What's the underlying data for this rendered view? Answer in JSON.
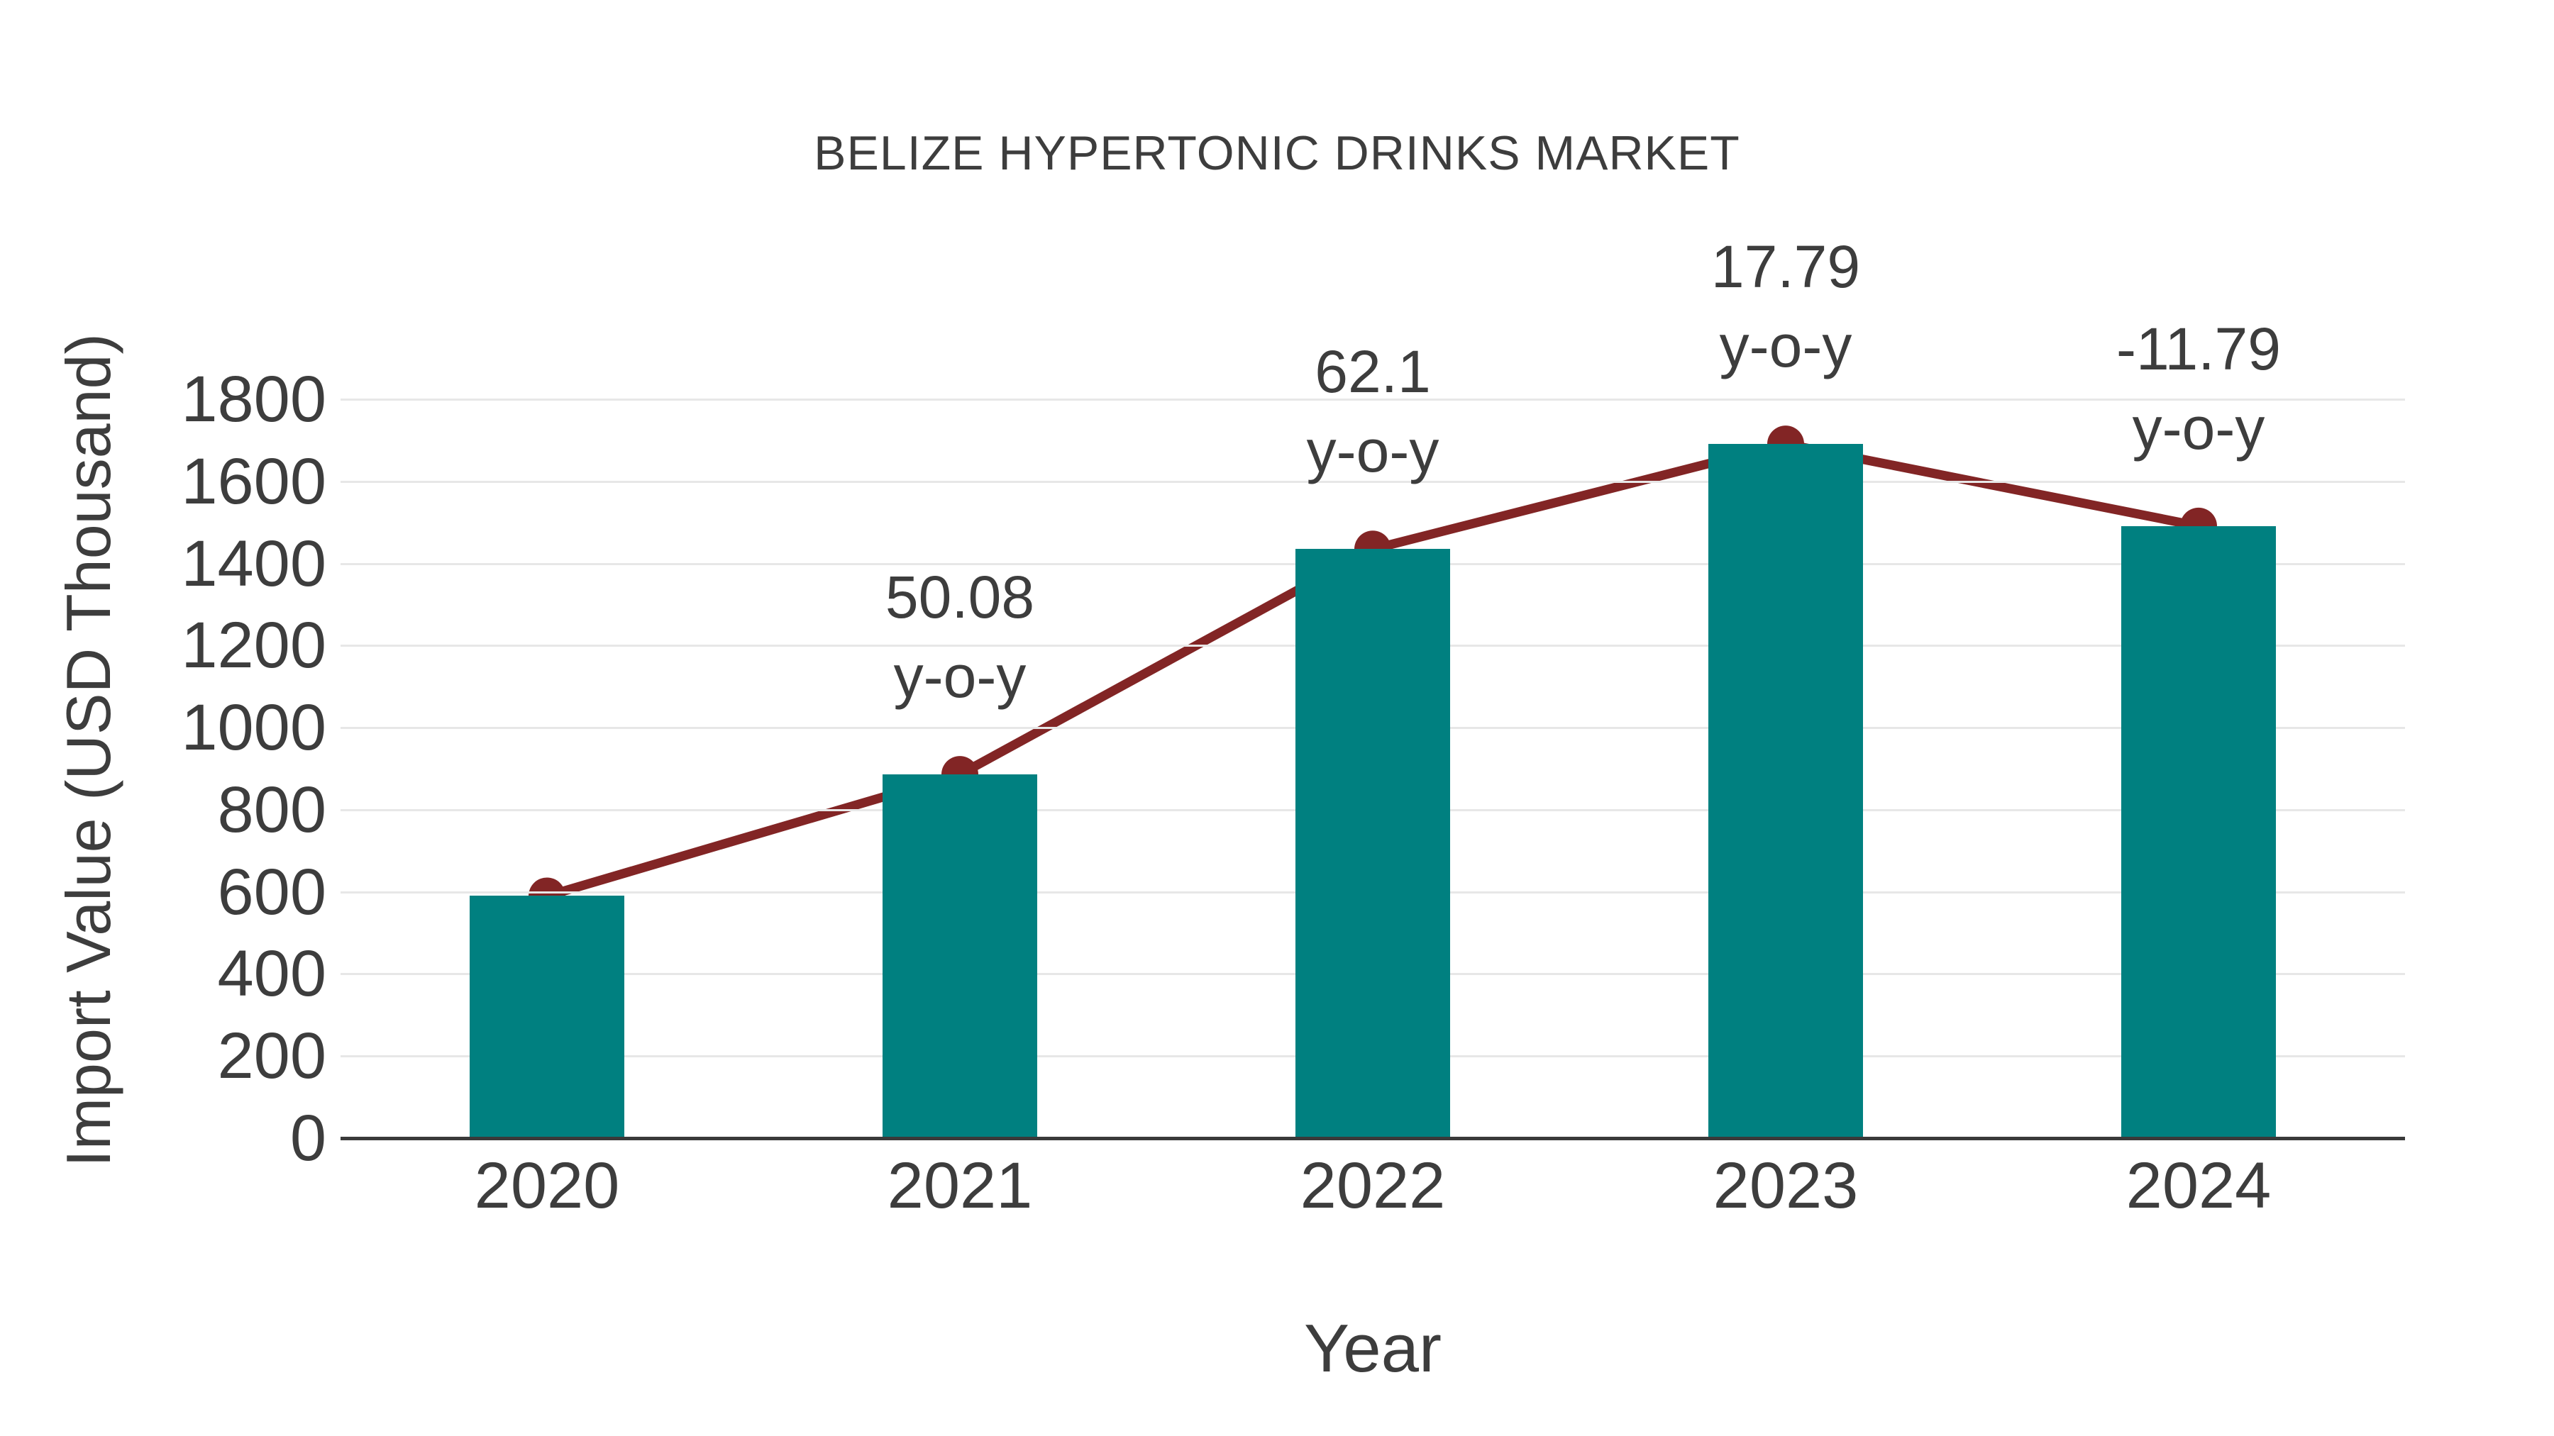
{
  "chart_data": {
    "type": "bar",
    "title": "BELIZE HYPERTONIC DRINKS MARKET",
    "xlabel": "Year",
    "ylabel": "Import Value (USD Thousand)",
    "categories": [
      "2020",
      "2021",
      "2022",
      "2023",
      "2024"
    ],
    "series": [
      {
        "name": "Import Value",
        "type": "bar",
        "color": "#008080",
        "values": [
          590,
          886,
          1435,
          1691,
          1491
        ]
      },
      {
        "name": "Year-over-year change",
        "type": "line",
        "color": "#822525",
        "values": [
          590,
          886,
          1435,
          1691,
          1491
        ],
        "point_labels": [
          null,
          "50.08",
          "62.1",
          "17.79",
          "-11.79"
        ],
        "point_label_suffix": "y-o-y"
      }
    ],
    "ylim": [
      0,
      1800
    ],
    "yticks": [
      0,
      200,
      400,
      600,
      800,
      1000,
      1200,
      1400,
      1600,
      1800
    ],
    "grid": true,
    "legend_position": "none"
  },
  "colors": {
    "bar": "#008080",
    "line": "#822525",
    "grid": "#e7e7e7",
    "axis": "#3a3a3a",
    "text": "#3d3d3d",
    "background": "#ffffff"
  }
}
